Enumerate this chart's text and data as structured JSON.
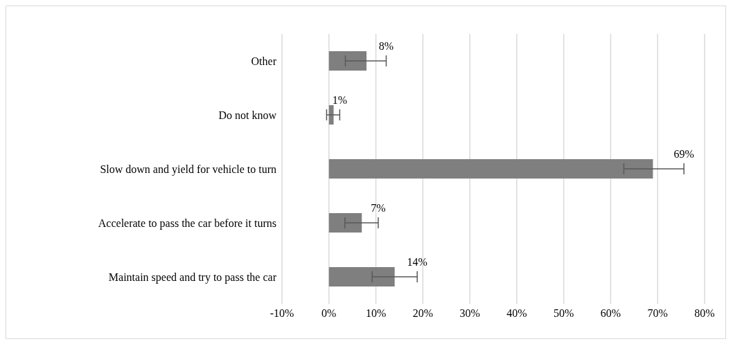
{
  "chart_data": {
    "type": "bar",
    "orientation": "horizontal",
    "categories": [
      "Other",
      "Do not know",
      "Slow down and yield for vehicle to turn",
      "Accelerate to pass the car before it turns",
      "Maintain speed and try to pass the car"
    ],
    "values": [
      8,
      1,
      69,
      7,
      14
    ],
    "value_labels": [
      "8%",
      "1%",
      "69%",
      "7%",
      "14%"
    ],
    "errors": [
      [
        3.5,
        12.2
      ],
      [
        -0.5,
        2.3
      ],
      [
        62.8,
        75.6
      ],
      [
        3.4,
        10.5
      ],
      [
        9.2,
        18.8
      ]
    ],
    "color": "#7f7f7f",
    "xlim": [
      -10,
      80
    ],
    "xticks": [
      {
        "value": -10,
        "label": "-10%"
      },
      {
        "value": 0,
        "label": "0%"
      },
      {
        "value": 10,
        "label": "10%"
      },
      {
        "value": 20,
        "label": "20%"
      },
      {
        "value": 30,
        "label": "30%"
      },
      {
        "value": 40,
        "label": "40%"
      },
      {
        "value": 50,
        "label": "50%"
      },
      {
        "value": 60,
        "label": "60%"
      },
      {
        "value": 70,
        "label": "70%"
      },
      {
        "value": 80,
        "label": "80%"
      }
    ],
    "grid": "x"
  }
}
